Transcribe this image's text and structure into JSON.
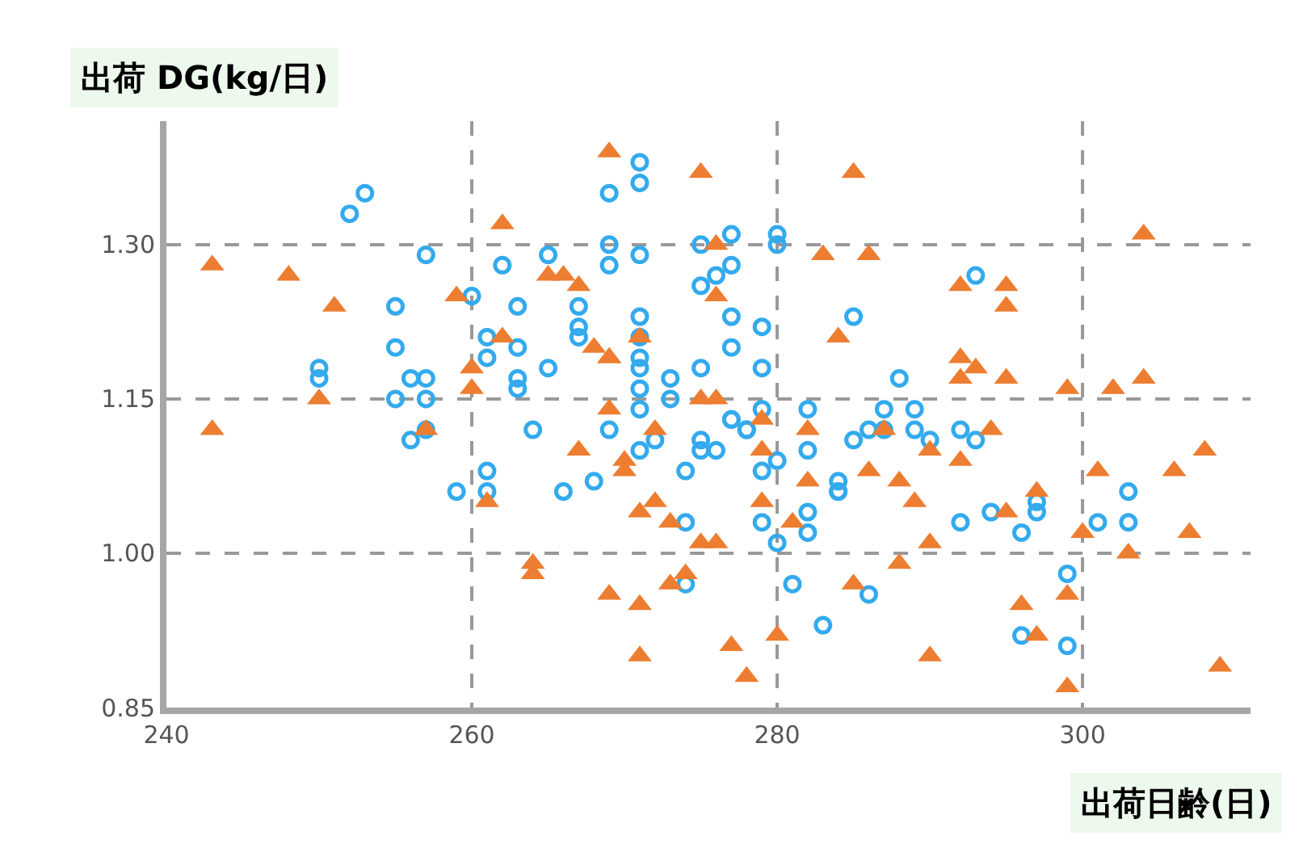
{
  "chart_data": {
    "type": "scatter",
    "xlabel": "出荷日齢(日)",
    "ylabel": "出荷 DG(kg/日)",
    "xlim": [
      240,
      311
    ],
    "xticks": [
      240,
      260,
      280,
      300
    ],
    "ylim": [
      0.85,
      1.42
    ],
    "yticks": [
      0.85,
      {
        "value": 1.0,
        "label": "1.00"
      },
      1.15,
      {
        "value": 1.3,
        "label": "1.30"
      }
    ],
    "grid": true,
    "series": [
      {
        "color": "#33aaee",
        "marker": "circle",
        "x": [
          250,
          250,
          253,
          252,
          257,
          255,
          255,
          255,
          256,
          257,
          257,
          256,
          257,
          259,
          260,
          261,
          261,
          261,
          261,
          262,
          263,
          263,
          263,
          263,
          264,
          265,
          265,
          266,
          267,
          267,
          267,
          268,
          269,
          269,
          269,
          269,
          271,
          271,
          271,
          271,
          271,
          271,
          271,
          271,
          271,
          273,
          273,
          271,
          272,
          274,
          274,
          274,
          275,
          275,
          275,
          276,
          275,
          277,
          277,
          277,
          277,
          275,
          276,
          277,
          277,
          278,
          278,
          279,
          279,
          279,
          279,
          279,
          280,
          280,
          280,
          281,
          280,
          282,
          282,
          282,
          282,
          284,
          284,
          284,
          283,
          285,
          285,
          286,
          286,
          287,
          287,
          288,
          289,
          289,
          290,
          292,
          293,
          292,
          294,
          296,
          293,
          297,
          297,
          299,
          299,
          296,
          301,
          303,
          303
        ],
        "values": [
          1.18,
          1.17,
          1.35,
          1.33,
          1.29,
          1.24,
          1.2,
          1.15,
          1.17,
          1.17,
          1.15,
          1.11,
          1.12,
          1.06,
          1.25,
          1.21,
          1.19,
          1.08,
          1.06,
          1.28,
          1.24,
          1.17,
          1.16,
          1.2,
          1.12,
          1.29,
          1.18,
          1.06,
          1.24,
          1.21,
          1.22,
          1.07,
          1.12,
          1.35,
          1.3,
          1.28,
          1.38,
          1.36,
          1.29,
          1.23,
          1.21,
          1.19,
          1.18,
          1.16,
          1.14,
          1.17,
          1.15,
          1.1,
          1.11,
          1.03,
          0.97,
          1.08,
          1.11,
          1.3,
          1.26,
          1.27,
          1.18,
          1.28,
          1.31,
          1.23,
          1.2,
          1.1,
          1.1,
          1.13,
          1.13,
          1.12,
          1.12,
          1.08,
          1.03,
          1.22,
          1.18,
          1.14,
          1.31,
          1.3,
          1.01,
          0.97,
          1.09,
          1.1,
          1.04,
          1.02,
          1.14,
          1.07,
          1.06,
          1.06,
          0.93,
          1.23,
          1.11,
          1.12,
          0.96,
          1.14,
          1.12,
          1.17,
          1.14,
          1.12,
          1.11,
          1.12,
          1.11,
          1.03,
          1.04,
          1.02,
          1.27,
          1.05,
          1.04,
          0.98,
          0.91,
          0.92,
          1.03,
          1.03,
          1.06
        ]
      },
      {
        "color": "#ed7d31",
        "marker": "triangle",
        "x": [
          243,
          243,
          248,
          251,
          250,
          257,
          259,
          260,
          260,
          261,
          262,
          262,
          264,
          264,
          265,
          266,
          267,
          267,
          268,
          269,
          269,
          269,
          269,
          270,
          270,
          269,
          271,
          271,
          271,
          271,
          272,
          272,
          273,
          273,
          275,
          274,
          275,
          275,
          276,
          276,
          276,
          276,
          277,
          278,
          279,
          279,
          280,
          279,
          281,
          282,
          282,
          283,
          284,
          285,
          285,
          286,
          286,
          287,
          288,
          288,
          289,
          290,
          290,
          290,
          292,
          292,
          292,
          292,
          293,
          294,
          295,
          295,
          295,
          295,
          296,
          297,
          297,
          299,
          299,
          299,
          300,
          301,
          302,
          303,
          304,
          304,
          306,
          307,
          308,
          309
        ],
        "values": [
          1.28,
          1.12,
          1.27,
          1.24,
          1.15,
          1.12,
          1.25,
          1.16,
          1.18,
          1.05,
          1.32,
          1.21,
          0.99,
          0.98,
          1.27,
          1.27,
          1.26,
          1.1,
          1.2,
          1.39,
          1.19,
          1.19,
          1.14,
          1.09,
          1.08,
          0.96,
          1.04,
          0.9,
          1.21,
          0.95,
          1.12,
          1.05,
          1.03,
          0.97,
          1.37,
          0.98,
          1.01,
          1.15,
          1.15,
          1.25,
          1.3,
          1.01,
          0.91,
          0.88,
          1.05,
          1.13,
          0.92,
          1.1,
          1.03,
          1.12,
          1.07,
          1.29,
          1.21,
          1.37,
          0.97,
          1.29,
          1.08,
          1.12,
          0.99,
          1.07,
          1.05,
          1.01,
          0.9,
          1.1,
          1.26,
          1.19,
          1.17,
          1.09,
          1.18,
          1.12,
          1.17,
          1.26,
          1.24,
          1.04,
          0.95,
          1.06,
          0.92,
          1.16,
          0.96,
          0.87,
          1.02,
          1.08,
          1.16,
          1.0,
          1.31,
          1.17,
          1.08,
          1.02,
          1.1,
          0.89
        ]
      }
    ]
  }
}
